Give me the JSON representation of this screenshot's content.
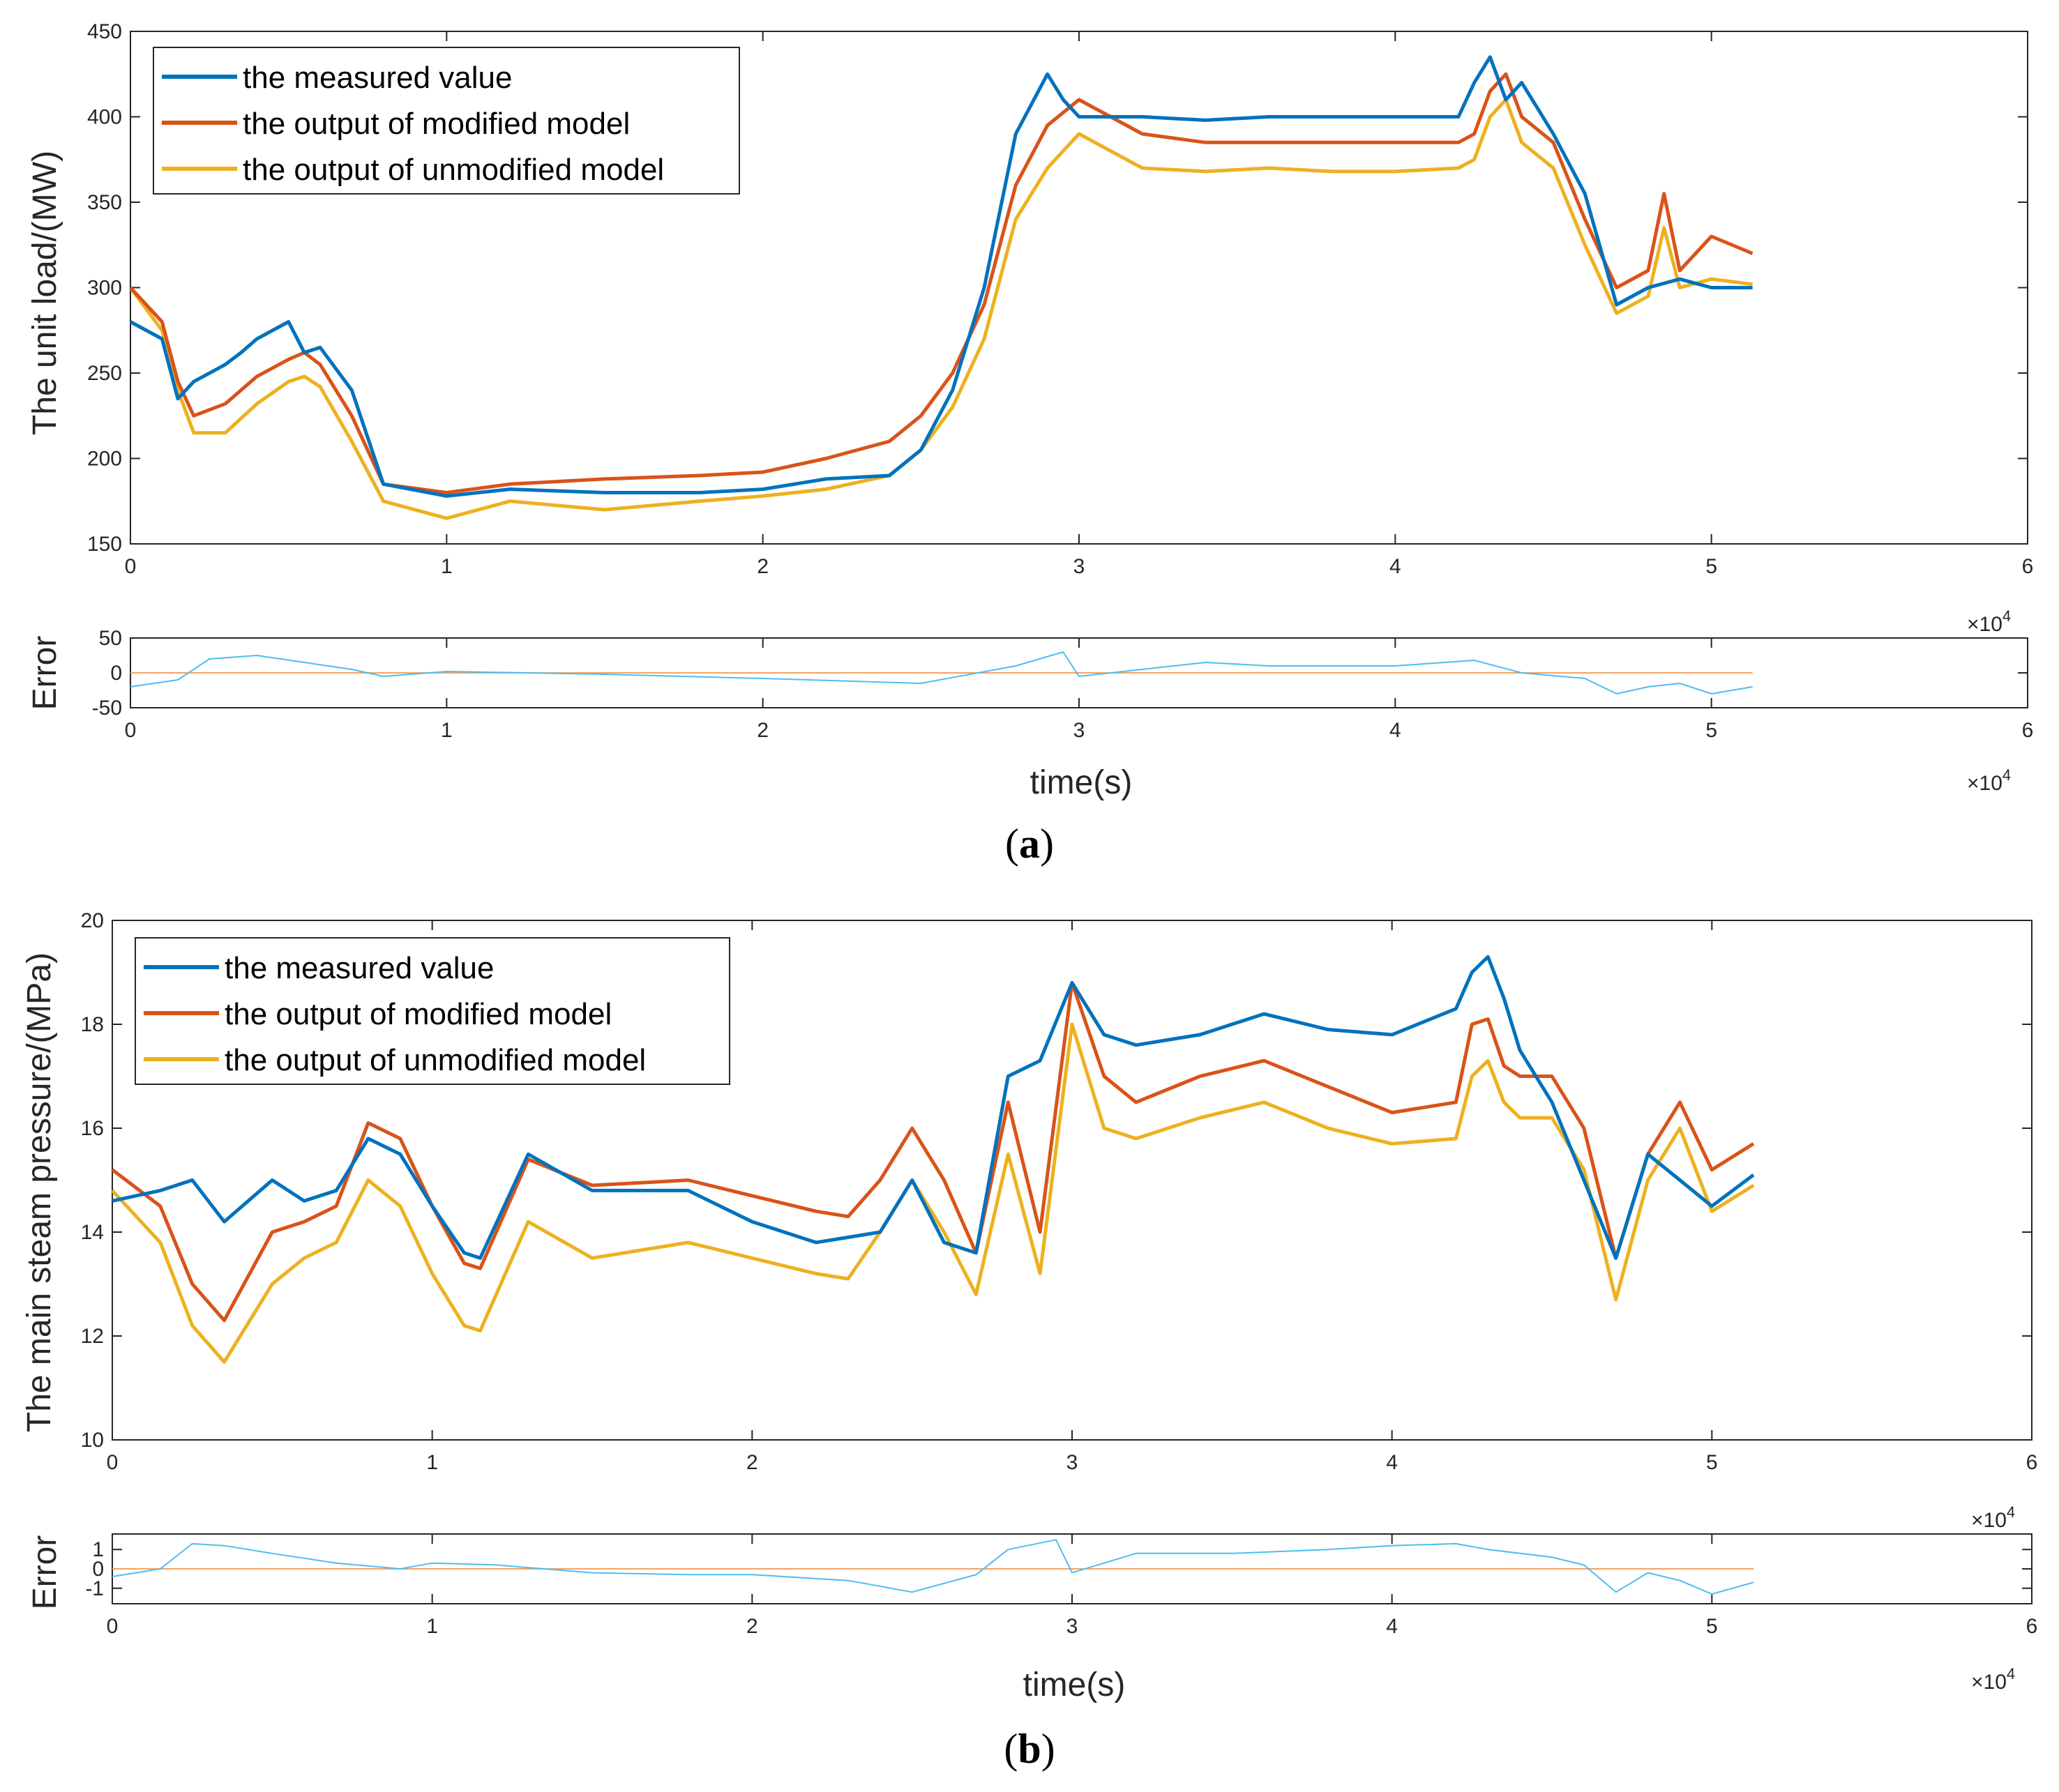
{
  "colors": {
    "measured": "#0072BD",
    "modified": "#D95319",
    "unmodified": "#EDB120",
    "error_line": "#4DBEEE",
    "zero_line": "#F4A460"
  },
  "panels": [
    {
      "caption_letter": "a",
      "x_exponent": "10",
      "x_exponent_power": "4",
      "main_x_ticks": [
        "0",
        "1",
        "2",
        "3",
        "4",
        "5",
        "6"
      ],
      "main_y_ticks": [
        "150",
        "200",
        "250",
        "300",
        "350",
        "400",
        "450"
      ],
      "main_ylim": [
        150,
        450
      ],
      "error_x_ticks": [
        "0",
        "1",
        "2",
        "3",
        "4",
        "5",
        "6"
      ],
      "error_y_ticks": [
        "-50",
        "0",
        "50"
      ],
      "error_ylim": [
        -50,
        50
      ],
      "legend": [
        "the measured value",
        "the output of modified model",
        "the output of unmodified model"
      ]
    },
    {
      "caption_letter": "b",
      "x_exponent": "10",
      "x_exponent_power": "4",
      "main_x_ticks": [
        "0",
        "1",
        "2",
        "3",
        "4",
        "5",
        "6"
      ],
      "main_y_ticks": [
        "10",
        "12",
        "14",
        "16",
        "18",
        "20"
      ],
      "main_ylim": [
        10,
        20
      ],
      "error_x_ticks": [
        "0",
        "1",
        "2",
        "3",
        "4",
        "5",
        "6"
      ],
      "error_y_ticks": [
        "-1",
        "0",
        "1"
      ],
      "error_ylim": [
        -1.8,
        1.8
      ],
      "legend": [
        "the measured value",
        "the output of modified model",
        "the output of unmodified model"
      ]
    }
  ],
  "chart_data": [
    {
      "type": "line",
      "title": "",
      "xlabel": "",
      "ylabel": "The unit load/(MW)",
      "xlim": [
        0,
        6
      ],
      "ylim": [
        150,
        450
      ],
      "x_scale": "×10^4",
      "grid": false,
      "legend_position": "top-left",
      "series": [
        {
          "name": "the measured value",
          "x": [
            0,
            0.1,
            0.15,
            0.2,
            0.3,
            0.35,
            0.4,
            0.5,
            0.55,
            0.6,
            0.7,
            0.8,
            1.0,
            1.2,
            1.5,
            1.8,
            2.0,
            2.2,
            2.4,
            2.5,
            2.6,
            2.7,
            2.8,
            2.9,
            2.95,
            3.0,
            3.2,
            3.4,
            3.6,
            3.8,
            4.0,
            4.2,
            4.25,
            4.3,
            4.35,
            4.4,
            4.5,
            4.6,
            4.7,
            4.8,
            4.9,
            5.0,
            5.13
          ],
          "y": [
            280,
            270,
            235,
            245,
            255,
            262,
            270,
            280,
            262,
            265,
            240,
            185,
            178,
            182,
            180,
            180,
            182,
            188,
            190,
            205,
            240,
            300,
            390,
            425,
            410,
            400,
            400,
            398,
            400,
            400,
            400,
            400,
            420,
            435,
            410,
            420,
            390,
            355,
            290,
            300,
            305,
            300,
            300
          ]
        },
        {
          "name": "the output of modified model",
          "x": [
            0,
            0.1,
            0.15,
            0.2,
            0.3,
            0.4,
            0.5,
            0.55,
            0.6,
            0.7,
            0.8,
            1.0,
            1.2,
            1.5,
            1.8,
            2.0,
            2.2,
            2.4,
            2.5,
            2.6,
            2.7,
            2.8,
            2.9,
            3.0,
            3.2,
            3.4,
            3.6,
            3.8,
            4.0,
            4.2,
            4.25,
            4.3,
            4.35,
            4.4,
            4.5,
            4.6,
            4.7,
            4.8,
            4.85,
            4.9,
            5.0,
            5.13
          ],
          "y": [
            300,
            280,
            245,
            225,
            232,
            248,
            258,
            262,
            255,
            225,
            185,
            180,
            185,
            188,
            190,
            192,
            200,
            210,
            225,
            250,
            290,
            360,
            395,
            410,
            390,
            385,
            385,
            385,
            385,
            385,
            390,
            415,
            425,
            400,
            385,
            340,
            300,
            310,
            355,
            310,
            330,
            320
          ]
        },
        {
          "name": "the output of unmodified model",
          "x": [
            0,
            0.1,
            0.15,
            0.2,
            0.3,
            0.4,
            0.5,
            0.55,
            0.6,
            0.7,
            0.8,
            1.0,
            1.2,
            1.5,
            1.8,
            2.0,
            2.2,
            2.4,
            2.5,
            2.6,
            2.7,
            2.8,
            2.9,
            3.0,
            3.2,
            3.4,
            3.6,
            3.8,
            4.0,
            4.2,
            4.25,
            4.3,
            4.35,
            4.4,
            4.5,
            4.6,
            4.7,
            4.8,
            4.85,
            4.9,
            5.0,
            5.13
          ],
          "y": [
            300,
            275,
            240,
            215,
            215,
            232,
            245,
            248,
            242,
            210,
            175,
            165,
            175,
            170,
            175,
            178,
            182,
            190,
            205,
            230,
            270,
            340,
            370,
            390,
            370,
            368,
            370,
            368,
            368,
            370,
            375,
            400,
            410,
            385,
            370,
            325,
            285,
            295,
            335,
            300,
            305,
            302
          ]
        }
      ]
    },
    {
      "type": "line",
      "title": "",
      "xlabel": "time(s)",
      "ylabel": "Error",
      "xlim": [
        0,
        6
      ],
      "ylim": [
        -50,
        50
      ],
      "x_scale": "×10^4",
      "series": [
        {
          "name": "error",
          "x": [
            0,
            0.15,
            0.25,
            0.4,
            0.55,
            0.7,
            0.8,
            1.0,
            1.5,
            2.0,
            2.5,
            2.8,
            2.95,
            3.0,
            3.2,
            3.4,
            3.6,
            4.0,
            4.25,
            4.4,
            4.6,
            4.7,
            4.8,
            4.9,
            5.0,
            5.13
          ],
          "y": [
            -20,
            -10,
            20,
            25,
            15,
            5,
            -5,
            2,
            -2,
            -8,
            -15,
            10,
            30,
            -5,
            5,
            15,
            10,
            10,
            18,
            0,
            -8,
            -30,
            -20,
            -15,
            -30,
            -20
          ]
        },
        {
          "name": "zero",
          "x": [
            0,
            5.13
          ],
          "y": [
            0,
            0
          ]
        }
      ]
    },
    {
      "type": "line",
      "title": "",
      "xlabel": "",
      "ylabel": "The main steam pressure/(MPa)",
      "xlim": [
        0,
        6
      ],
      "ylim": [
        10,
        20
      ],
      "x_scale": "×10^4",
      "grid": false,
      "legend_position": "top-left",
      "series": [
        {
          "name": "the measured value",
          "x": [
            0,
            0.15,
            0.25,
            0.35,
            0.5,
            0.6,
            0.7,
            0.8,
            0.9,
            1.0,
            1.1,
            1.15,
            1.3,
            1.5,
            1.8,
            2.0,
            2.2,
            2.3,
            2.4,
            2.5,
            2.6,
            2.7,
            2.8,
            2.9,
            3.0,
            3.1,
            3.2,
            3.4,
            3.6,
            3.8,
            4.0,
            4.2,
            4.25,
            4.3,
            4.35,
            4.4,
            4.5,
            4.6,
            4.7,
            4.8,
            4.9,
            5.0,
            5.13
          ],
          "y": [
            14.6,
            14.8,
            15.0,
            14.2,
            15.0,
            14.6,
            14.8,
            15.8,
            15.5,
            14.5,
            13.6,
            13.5,
            15.5,
            14.8,
            14.8,
            14.2,
            13.8,
            13.9,
            14.0,
            15.0,
            13.8,
            13.6,
            17.0,
            17.3,
            18.8,
            17.8,
            17.6,
            17.8,
            18.2,
            17.9,
            17.8,
            18.3,
            19.0,
            19.3,
            18.5,
            17.5,
            16.5,
            15.0,
            13.5,
            15.5,
            15.0,
            14.5,
            15.1
          ]
        },
        {
          "name": "the output of modified model",
          "x": [
            0,
            0.15,
            0.25,
            0.35,
            0.5,
            0.6,
            0.7,
            0.8,
            0.9,
            1.0,
            1.1,
            1.15,
            1.3,
            1.5,
            1.8,
            2.0,
            2.2,
            2.3,
            2.4,
            2.5,
            2.6,
            2.7,
            2.8,
            2.9,
            3.0,
            3.1,
            3.2,
            3.4,
            3.6,
            3.8,
            4.0,
            4.2,
            4.25,
            4.3,
            4.35,
            4.4,
            4.5,
            4.6,
            4.7,
            4.8,
            4.9,
            5.0,
            5.13
          ],
          "y": [
            15.2,
            14.5,
            13.0,
            12.3,
            14.0,
            14.2,
            14.5,
            16.1,
            15.8,
            14.5,
            13.4,
            13.3,
            15.4,
            14.9,
            15.0,
            14.7,
            14.4,
            14.3,
            15.0,
            16.0,
            15.0,
            13.6,
            16.5,
            14.0,
            18.8,
            17.0,
            16.5,
            17.0,
            17.3,
            16.8,
            16.3,
            16.5,
            18.0,
            18.1,
            17.2,
            17.0,
            17.0,
            16.0,
            13.5,
            15.5,
            16.5,
            15.2,
            15.7
          ]
        },
        {
          "name": "the output of unmodified model",
          "x": [
            0,
            0.15,
            0.25,
            0.35,
            0.5,
            0.6,
            0.7,
            0.8,
            0.9,
            1.0,
            1.1,
            1.15,
            1.3,
            1.5,
            1.8,
            2.0,
            2.2,
            2.3,
            2.4,
            2.5,
            2.6,
            2.7,
            2.8,
            2.9,
            3.0,
            3.1,
            3.2,
            3.4,
            3.6,
            3.8,
            4.0,
            4.2,
            4.25,
            4.3,
            4.35,
            4.4,
            4.5,
            4.6,
            4.7,
            4.8,
            4.9,
            5.0,
            5.13
          ],
          "y": [
            14.8,
            13.8,
            12.2,
            11.5,
            13.0,
            13.5,
            13.8,
            15.0,
            14.5,
            13.2,
            12.2,
            12.1,
            14.2,
            13.5,
            13.8,
            13.5,
            13.2,
            13.1,
            14.0,
            15.0,
            14.0,
            12.8,
            15.5,
            13.2,
            18.0,
            16.0,
            15.8,
            16.2,
            16.5,
            16.0,
            15.7,
            15.8,
            17.0,
            17.3,
            16.5,
            16.2,
            16.2,
            15.2,
            12.7,
            15.0,
            16.0,
            14.4,
            14.9
          ]
        }
      ]
    },
    {
      "type": "line",
      "title": "",
      "xlabel": "time(s)",
      "ylabel": "Error",
      "xlim": [
        0,
        6
      ],
      "ylim": [
        -1.8,
        1.8
      ],
      "x_scale": "×10^4",
      "series": [
        {
          "name": "error",
          "x": [
            0,
            0.15,
            0.25,
            0.35,
            0.5,
            0.7,
            0.9,
            1.0,
            1.2,
            1.5,
            1.8,
            2.0,
            2.3,
            2.5,
            2.7,
            2.8,
            2.95,
            3.0,
            3.2,
            3.5,
            3.8,
            4.0,
            4.2,
            4.3,
            4.5,
            4.6,
            4.7,
            4.8,
            4.9,
            5.0,
            5.13
          ],
          "y": [
            -0.4,
            0.0,
            1.3,
            1.2,
            0.8,
            0.3,
            0.0,
            0.3,
            0.2,
            -0.2,
            -0.3,
            -0.3,
            -0.6,
            -1.2,
            -0.3,
            1.0,
            1.5,
            -0.2,
            0.8,
            0.8,
            1.0,
            1.2,
            1.3,
            1.0,
            0.6,
            0.2,
            -1.2,
            -0.2,
            -0.6,
            -1.3,
            -0.7
          ]
        },
        {
          "name": "zero",
          "x": [
            0,
            5.13
          ],
          "y": [
            0,
            0
          ]
        }
      ]
    }
  ]
}
